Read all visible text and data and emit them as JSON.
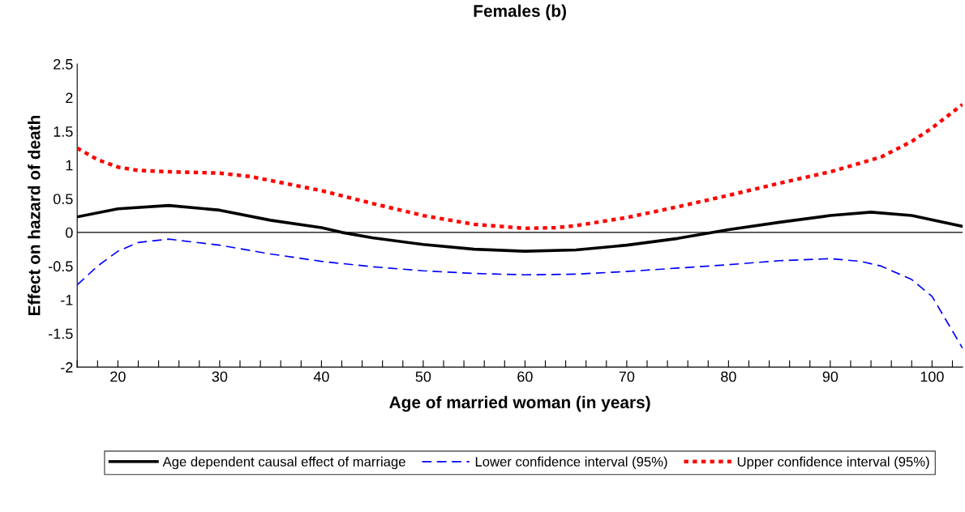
{
  "chart_data": {
    "type": "line",
    "title": "Females (b)",
    "xlabel": "Age of married woman (in years)",
    "ylabel": "Effect on hazard of death",
    "xlim": [
      16,
      103
    ],
    "xticks": [
      {
        "value": 16,
        "label": null
      },
      {
        "value": 18,
        "label": null
      },
      {
        "value": 20,
        "label": "20"
      },
      {
        "value": 22,
        "label": null
      },
      {
        "value": 24,
        "label": null
      },
      {
        "value": 26,
        "label": null
      },
      {
        "value": 28,
        "label": null
      },
      {
        "value": 30,
        "label": "30"
      },
      {
        "value": 32,
        "label": null
      },
      {
        "value": 34,
        "label": null
      },
      {
        "value": 36,
        "label": null
      },
      {
        "value": 38,
        "label": null
      },
      {
        "value": 40,
        "label": "40"
      },
      {
        "value": 42,
        "label": null
      },
      {
        "value": 44,
        "label": null
      },
      {
        "value": 46,
        "label": null
      },
      {
        "value": 48,
        "label": null
      },
      {
        "value": 50,
        "label": "50"
      },
      {
        "value": 52,
        "label": null
      },
      {
        "value": 54,
        "label": null
      },
      {
        "value": 56,
        "label": null
      },
      {
        "value": 58,
        "label": null
      },
      {
        "value": 60,
        "label": "60"
      },
      {
        "value": 62,
        "label": null
      },
      {
        "value": 64,
        "label": null
      },
      {
        "value": 66,
        "label": null
      },
      {
        "value": 68,
        "label": null
      },
      {
        "value": 70,
        "label": "70"
      },
      {
        "value": 72,
        "label": null
      },
      {
        "value": 74,
        "label": null
      },
      {
        "value": 76,
        "label": null
      },
      {
        "value": 78,
        "label": null
      },
      {
        "value": 80,
        "label": "80"
      },
      {
        "value": 82,
        "label": null
      },
      {
        "value": 84,
        "label": null
      },
      {
        "value": 86,
        "label": null
      },
      {
        "value": 88,
        "label": null
      },
      {
        "value": 90,
        "label": "90"
      },
      {
        "value": 92,
        "label": null
      },
      {
        "value": 94,
        "label": null
      },
      {
        "value": 96,
        "label": null
      },
      {
        "value": 98,
        "label": null
      },
      {
        "value": 100,
        "label": "100"
      },
      {
        "value": 102,
        "label": null
      }
    ],
    "ylim": [
      -2,
      2.5
    ],
    "yticks": [
      -2,
      -1.5,
      -1,
      -0.5,
      0,
      0.5,
      1,
      1.5,
      2,
      2.5
    ],
    "ref_lines": [
      {
        "axis": "y",
        "value": 0,
        "label": null,
        "color": "#000000",
        "line_style": "solid"
      }
    ],
    "grid": false,
    "legend": "bottom",
    "marker": "none",
    "series": [
      {
        "name": "Age dependent causal effect of marriage",
        "color": "#000000",
        "line_style": "solid",
        "x": [
          16,
          20,
          25,
          30,
          35,
          40,
          42,
          45,
          50,
          55,
          60,
          65,
          70,
          75,
          80,
          85,
          90,
          94,
          98,
          103
        ],
        "values": [
          0.23,
          0.35,
          0.4,
          0.33,
          0.18,
          0.07,
          0,
          -0.08,
          -0.18,
          -0.25,
          -0.28,
          -0.26,
          -0.19,
          -0.09,
          0.04,
          0.15,
          0.25,
          0.3,
          0.25,
          0.09
        ]
      },
      {
        "name": "Lower confidence interval (95%)",
        "color": "#0000ff",
        "line_style": "dashed",
        "x": [
          16,
          18,
          20,
          22,
          25,
          30,
          35,
          40,
          45,
          50,
          55,
          60,
          65,
          70,
          75,
          80,
          85,
          90,
          93,
          95,
          98,
          100,
          103
        ],
        "values": [
          -0.78,
          -0.5,
          -0.28,
          -0.15,
          -0.1,
          -0.19,
          -0.32,
          -0.43,
          -0.51,
          -0.57,
          -0.61,
          -0.63,
          -0.62,
          -0.58,
          -0.53,
          -0.48,
          -0.42,
          -0.39,
          -0.43,
          -0.5,
          -0.7,
          -0.95,
          -1.72
        ]
      },
      {
        "name": "Upper confidence interval (95%)",
        "color": "#ff0000",
        "line_style": "dotted",
        "x": [
          16,
          18,
          20,
          22,
          25,
          30,
          33,
          35,
          40,
          45,
          50,
          55,
          60,
          63,
          65,
          70,
          75,
          80,
          85,
          90,
          95,
          98,
          100,
          103
        ],
        "values": [
          1.25,
          1.08,
          0.97,
          0.92,
          0.9,
          0.88,
          0.83,
          0.77,
          0.62,
          0.43,
          0.25,
          0.12,
          0.06,
          0.07,
          0.1,
          0.22,
          0.38,
          0.55,
          0.73,
          0.9,
          1.12,
          1.35,
          1.55,
          1.9
        ]
      }
    ]
  }
}
